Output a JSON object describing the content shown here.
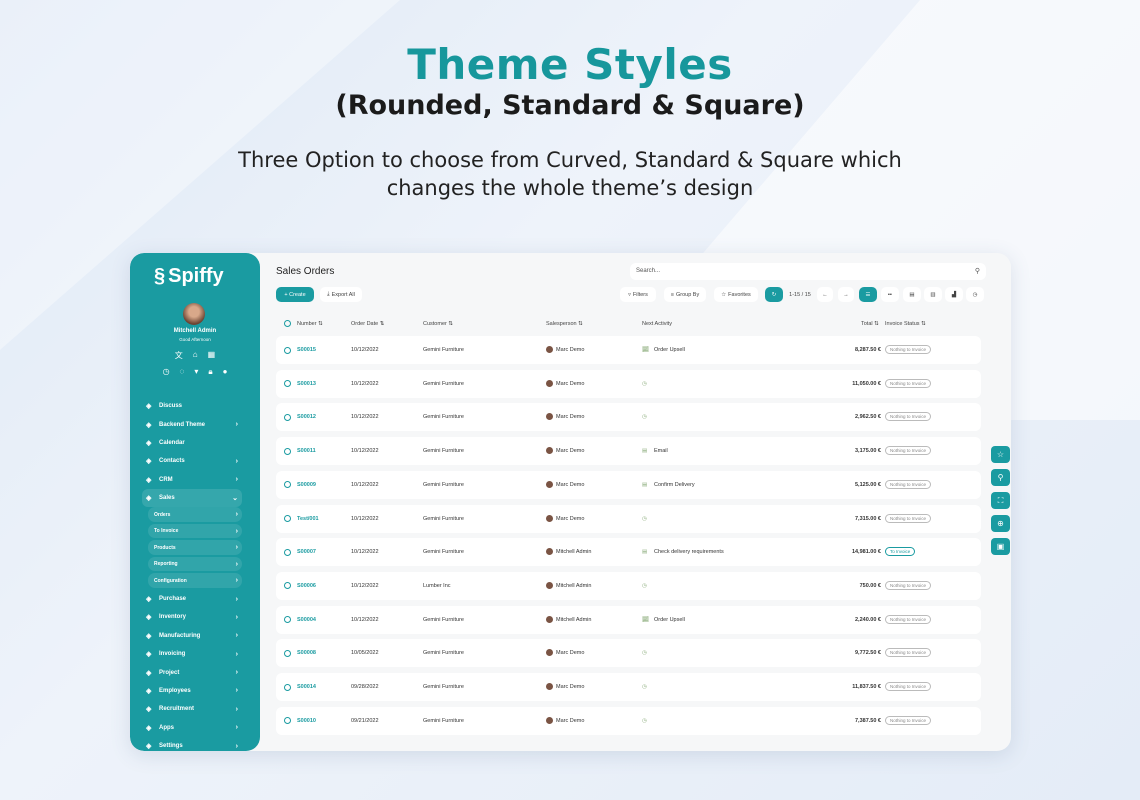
{
  "hero": {
    "title": "Theme Styles",
    "subtitle": "(Rounded, Standard & Square)",
    "description_line1": "Three Option to choose from Curved, Standard & Square which",
    "description_line2": "changes the whole theme’s design"
  },
  "sidebar": {
    "logo": "Spiffy",
    "user_name": "Mitchell Admin",
    "greeting": "Good Afternoon",
    "items": [
      {
        "label": "Discuss",
        "icon": "chat-icon",
        "chev": false
      },
      {
        "label": "Backend Theme",
        "icon": "paint-icon",
        "chev": true
      },
      {
        "label": "Calendar",
        "icon": "calendar-icon",
        "chev": false
      },
      {
        "label": "Contacts",
        "icon": "contacts-icon",
        "chev": true
      },
      {
        "label": "CRM",
        "icon": "crm-icon",
        "chev": true
      },
      {
        "label": "Sales",
        "icon": "chart-icon",
        "chev": true,
        "open": true
      }
    ],
    "sales_sub": [
      "Orders",
      "To Invoice",
      "Products",
      "Reporting",
      "Configuration"
    ],
    "items2": [
      {
        "label": "Purchase",
        "icon": "card-icon"
      },
      {
        "label": "Inventory",
        "icon": "box-icon"
      },
      {
        "label": "Manufacturing",
        "icon": "tools-icon"
      },
      {
        "label": "Invoicing",
        "icon": "invoice-icon"
      },
      {
        "label": "Project",
        "icon": "project-icon"
      },
      {
        "label": "Employees",
        "icon": "employees-icon"
      },
      {
        "label": "Recruitment",
        "icon": "recruit-icon"
      },
      {
        "label": "Apps",
        "icon": "apps-icon"
      },
      {
        "label": "Settings",
        "icon": "gear-icon"
      }
    ]
  },
  "main": {
    "title": "Sales Orders",
    "search_placeholder": "Search...",
    "create": "+ Create",
    "export": "Export All",
    "filters": "Filters",
    "group_by": "Group By",
    "favorites": "Favorites",
    "pager": "1-15 / 15",
    "columns": {
      "number": "Number ⇅",
      "order_date": "Order Date ⇅",
      "customer": "Customer ⇅",
      "salesperson": "Salesperson ⇅",
      "next_activity": "Next Activity",
      "total": "Total ⇅",
      "invoice_status": "Invoice Status ⇅"
    },
    "rows": [
      {
        "number": "S00015",
        "date": "10/12/2022",
        "customer": "Gemini Furniture",
        "salesperson": "Marc Demo",
        "activity": "Order Upsell",
        "total": "8,287.50 €",
        "status": "Nothing to Invoice"
      },
      {
        "number": "S00013",
        "date": "10/12/2022",
        "customer": "Gemini Furniture",
        "salesperson": "Marc Demo",
        "activity": "",
        "total": "11,050.00 €",
        "status": "Nothing to Invoice"
      },
      {
        "number": "S00012",
        "date": "10/12/2022",
        "customer": "Gemini Furniture",
        "salesperson": "Marc Demo",
        "activity": "",
        "total": "2,962.50 €",
        "status": "Nothing to Invoice"
      },
      {
        "number": "S00011",
        "date": "10/12/2022",
        "customer": "Gemini Furniture",
        "salesperson": "Marc Demo",
        "activity": "Email",
        "total": "3,175.00 €",
        "status": "Nothing to Invoice"
      },
      {
        "number": "S00009",
        "date": "10/12/2022",
        "customer": "Gemini Furniture",
        "salesperson": "Marc Demo",
        "activity": "Confirm Delivery",
        "total": "5,125.00 €",
        "status": "Nothing to Invoice"
      },
      {
        "number": "Test/001",
        "date": "10/12/2022",
        "customer": "Gemini Furniture",
        "salesperson": "Marc Demo",
        "activity": "",
        "total": "7,315.00 €",
        "status": "Nothing to Invoice"
      },
      {
        "number": "S00007",
        "date": "10/12/2022",
        "customer": "Gemini Furniture",
        "salesperson": "Mitchell Admin",
        "activity": "Check delivery requirements",
        "total": "14,981.00 €",
        "status": "To Invoice"
      },
      {
        "number": "S00006",
        "date": "10/12/2022",
        "customer": "Lumber Inc",
        "salesperson": "Mitchell Admin",
        "activity": "",
        "total": "750.00 €",
        "status": "Nothing to Invoice"
      },
      {
        "number": "S00004",
        "date": "10/12/2022",
        "customer": "Gemini Furniture",
        "salesperson": "Mitchell Admin",
        "activity": "Order Upsell",
        "total": "2,240.00 €",
        "status": "Nothing to Invoice"
      },
      {
        "number": "S00008",
        "date": "10/05/2022",
        "customer": "Gemini Furniture",
        "salesperson": "Marc Demo",
        "activity": "",
        "total": "9,772.50 €",
        "status": "Nothing to Invoice"
      },
      {
        "number": "S00014",
        "date": "09/28/2022",
        "customer": "Gemini Furniture",
        "salesperson": "Marc Demo",
        "activity": "",
        "total": "11,837.50 €",
        "status": "Nothing to Invoice"
      },
      {
        "number": "S00010",
        "date": "09/21/2022",
        "customer": "Gemini Furniture",
        "salesperson": "Marc Demo",
        "activity": "",
        "total": "7,387.50 €",
        "status": "Nothing to Invoice"
      }
    ]
  },
  "colors": {
    "accent": "#1a9ba1"
  }
}
